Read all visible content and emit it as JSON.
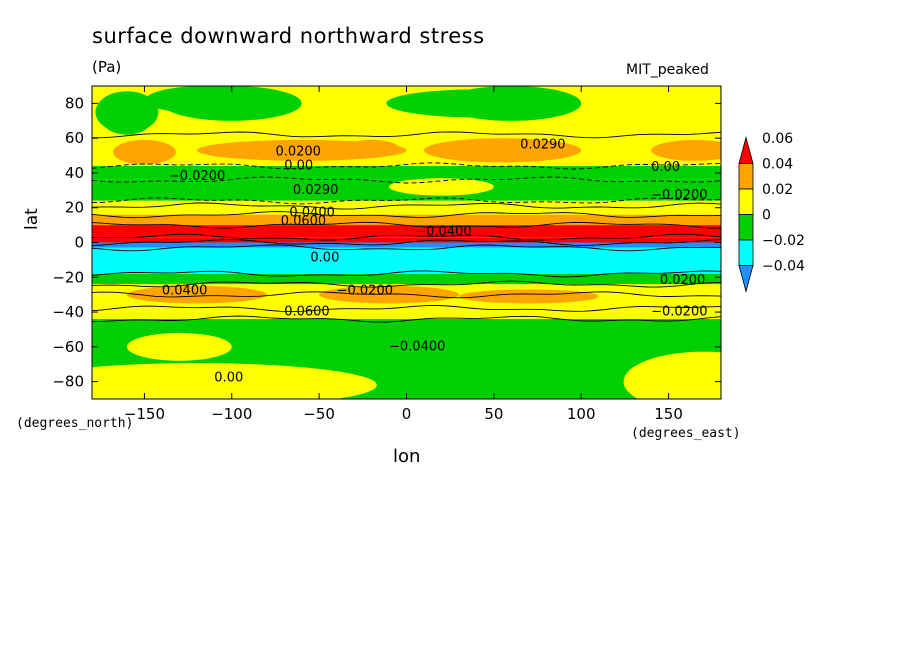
{
  "chart_data": {
    "type": "heatmap",
    "title": "surface downward northward stress",
    "units": "(Pa)",
    "model": "MIT_peaked",
    "xlabel": "lon",
    "ylabel": "lat",
    "x_units": "(degrees_east)",
    "y_units": "(degrees_north)",
    "xlim": [
      -180,
      180
    ],
    "ylim": [
      -90,
      90
    ],
    "x_ticks": [
      -150,
      -100,
      -50,
      0,
      50,
      100,
      150
    ],
    "x_tick_labels": [
      "−150",
      "−100",
      "−50",
      "0",
      "50",
      "100",
      "150"
    ],
    "y_ticks": [
      80,
      60,
      40,
      20,
      0,
      -20,
      -40,
      -60,
      -80
    ],
    "y_tick_labels": [
      "80",
      "60",
      "40",
      "20",
      "0",
      "−20",
      "−40",
      "−60",
      "−80"
    ],
    "colorbar": {
      "levels": [
        -0.04,
        -0.02,
        0,
        0.02,
        0.04,
        0.06
      ],
      "labels": [
        "−0.04",
        "−0.02",
        "0",
        "0.02",
        "0.04",
        "0.06"
      ],
      "colors": [
        "#1e90ff",
        "#00ffff",
        "#00d000",
        "#ffff00",
        "#ffa500",
        "#ff0000"
      ]
    },
    "latitude_bands": [
      {
        "lat": [
          62,
          90
        ],
        "value": 0.005
      },
      {
        "lat": [
          44,
          62
        ],
        "value": 0.015
      },
      {
        "lat": [
          36,
          44
        ],
        "value": -0.005
      },
      {
        "lat": [
          24,
          36
        ],
        "value": -0.015
      },
      {
        "lat": [
          21,
          24
        ],
        "value": 0.005
      },
      {
        "lat": [
          16,
          21
        ],
        "value": 0.015
      },
      {
        "lat": [
          10,
          16
        ],
        "value": 0.03
      },
      {
        "lat": [
          3,
          10
        ],
        "value": 0.045
      },
      {
        "lat": [
          0,
          3
        ],
        "value": 0.065
      },
      {
        "lat": [
          -3,
          0
        ],
        "value": -0.045
      },
      {
        "lat": [
          -18,
          -3
        ],
        "value": -0.03
      },
      {
        "lat": [
          -24,
          -18
        ],
        "value": -0.015
      },
      {
        "lat": [
          -30,
          -24
        ],
        "value": 0.005
      },
      {
        "lat": [
          -38,
          -30
        ],
        "value": 0.015
      },
      {
        "lat": [
          -44,
          -38
        ],
        "value": 0.005
      },
      {
        "lat": [
          -90,
          -44
        ],
        "value": -0.005
      }
    ],
    "contour_labels": [
      "0.0200",
      "0.00",
      "−0.0200",
      "0.0290",
      "0.0400",
      "0.0600",
      "−0.0400",
      "0.00",
      "−0.0200"
    ]
  }
}
